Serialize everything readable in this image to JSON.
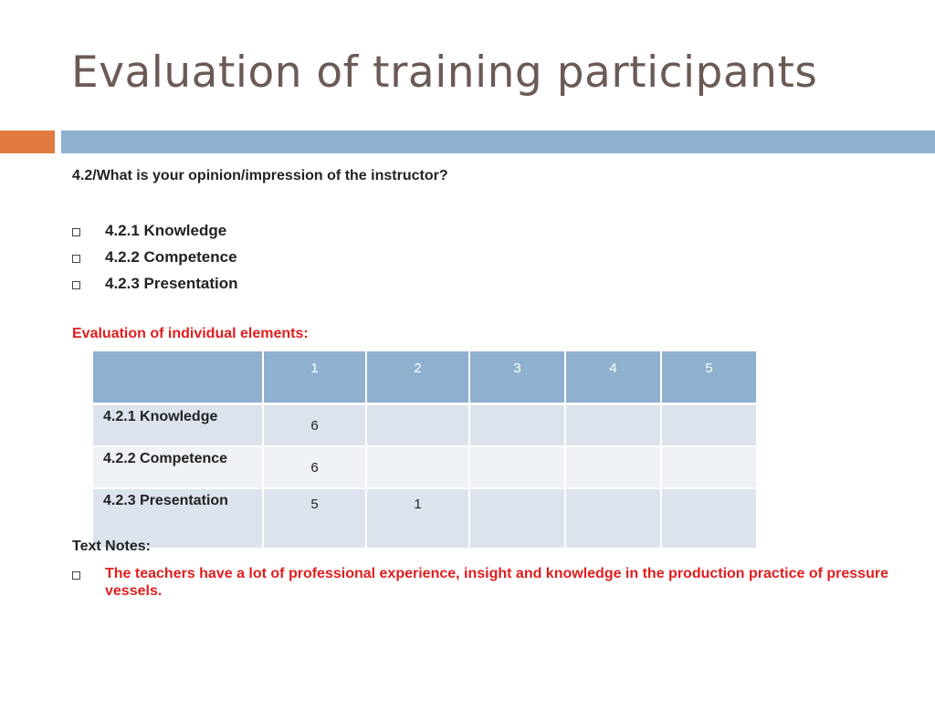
{
  "slide": {
    "title": "Evaluation of training participants",
    "question": "4.2/What is your opinion/impression of the instructor?",
    "bullets": [
      "4.2.1 Knowledge",
      "4.2.2 Competence",
      "4.2.3 Presentation"
    ],
    "eval_heading": "Evaluation of individual elements:",
    "table": {
      "header": [
        "",
        "1",
        "2",
        "3",
        "4",
        "5"
      ],
      "rows": [
        {
          "label": "4.2.1 Knowledge",
          "cells": [
            "6",
            "",
            "",
            "",
            ""
          ]
        },
        {
          "label": "4.2.2 Competence",
          "cells": [
            "6",
            "",
            "",
            "",
            ""
          ]
        },
        {
          "label": "4.2.3 Presentation",
          "cells": [
            "5",
            "1",
            "",
            "",
            ""
          ]
        }
      ]
    },
    "notes_heading": "Text Notes:",
    "notes": [
      "The teachers have a lot of professional experience, insight and knowledge in the production practice of pressure vessels."
    ]
  },
  "colors": {
    "title": "#6b5a55",
    "accent_orange": "#e07a3e",
    "accent_blue": "#8fb0cf",
    "highlight_red": "#e01e1e"
  }
}
